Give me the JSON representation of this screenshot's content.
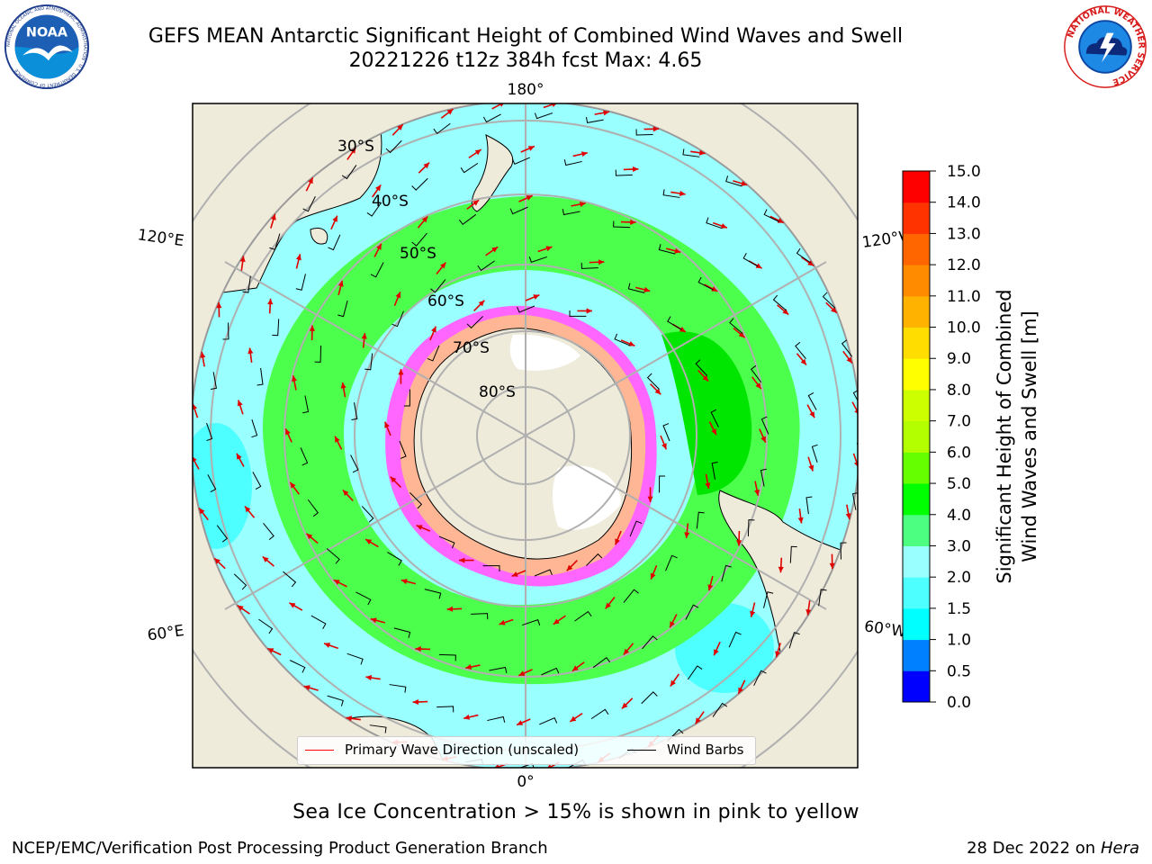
{
  "header": {
    "title_line1": "GEFS MEAN Antarctic Significant Height of Combined Wind Waves and Swell",
    "title_line2": "20221226 t12z 384h fcst   Max: 4.65"
  },
  "logos": {
    "noaa": {
      "text": "NOAA",
      "ring_text": "NATIONAL OCEANIC AND ATMOSPHERIC ADMINISTRATION · U.S. DEPARTMENT OF COMMERCE",
      "icon": "noaa-seagull-icon"
    },
    "nws": {
      "ring_text": "NATIONAL WEATHER SERVICE",
      "icon": "nws-lightning-cloud-icon"
    }
  },
  "map": {
    "projection": "south-polar-stereographic",
    "longitude_labels": {
      "top": "180°",
      "bottom": "0°",
      "left_upper": "120°E",
      "left_lower": "60°E",
      "right_upper": "120°W",
      "right_lower": "60°W"
    },
    "latitude_labels": [
      "30°S",
      "40°S",
      "50°S",
      "60°S",
      "70°S",
      "80°S"
    ],
    "colors": {
      "land": "#eeebdb",
      "ocean_low": "#99ffff",
      "ocean_mid": "#4dff4d",
      "ocean_high": "#00e600",
      "ice": "#ff66ff",
      "grid": "#b0b0b0"
    }
  },
  "legend": {
    "items": [
      {
        "label": "Primary Wave Direction (unscaled)",
        "color": "#ff0000"
      },
      {
        "label": "Wind Barbs",
        "color": "#000000"
      }
    ]
  },
  "colorbar": {
    "title_line1": "Significant Height of Combined",
    "title_line2": "Wind Waves and Swell [m]",
    "ticks": [
      "0.0",
      "0.5",
      "1.0",
      "1.5",
      "2.0",
      "3.0",
      "4.0",
      "5.0",
      "6.0",
      "7.0",
      "8.0",
      "9.0",
      "10.0",
      "11.0",
      "12.0",
      "13.0",
      "14.0",
      "15.0"
    ],
    "colors": [
      "#0000ff",
      "#0080ff",
      "#00ffff",
      "#4dffff",
      "#99ffff",
      "#4dff80",
      "#00ff00",
      "#66ff00",
      "#b3ff00",
      "#ccff00",
      "#ffff00",
      "#ffdd00",
      "#ffb300",
      "#ff8c00",
      "#ff6600",
      "#ff3300",
      "#ff0000"
    ]
  },
  "notes": {
    "ice": "Sea Ice Concentration > 15% is shown in pink to yellow"
  },
  "footer": {
    "left": "NCEP/EMC/Verification Post Processing Product Generation Branch",
    "right_date": "28 Dec 2022 on",
    "right_host": "Hera"
  }
}
